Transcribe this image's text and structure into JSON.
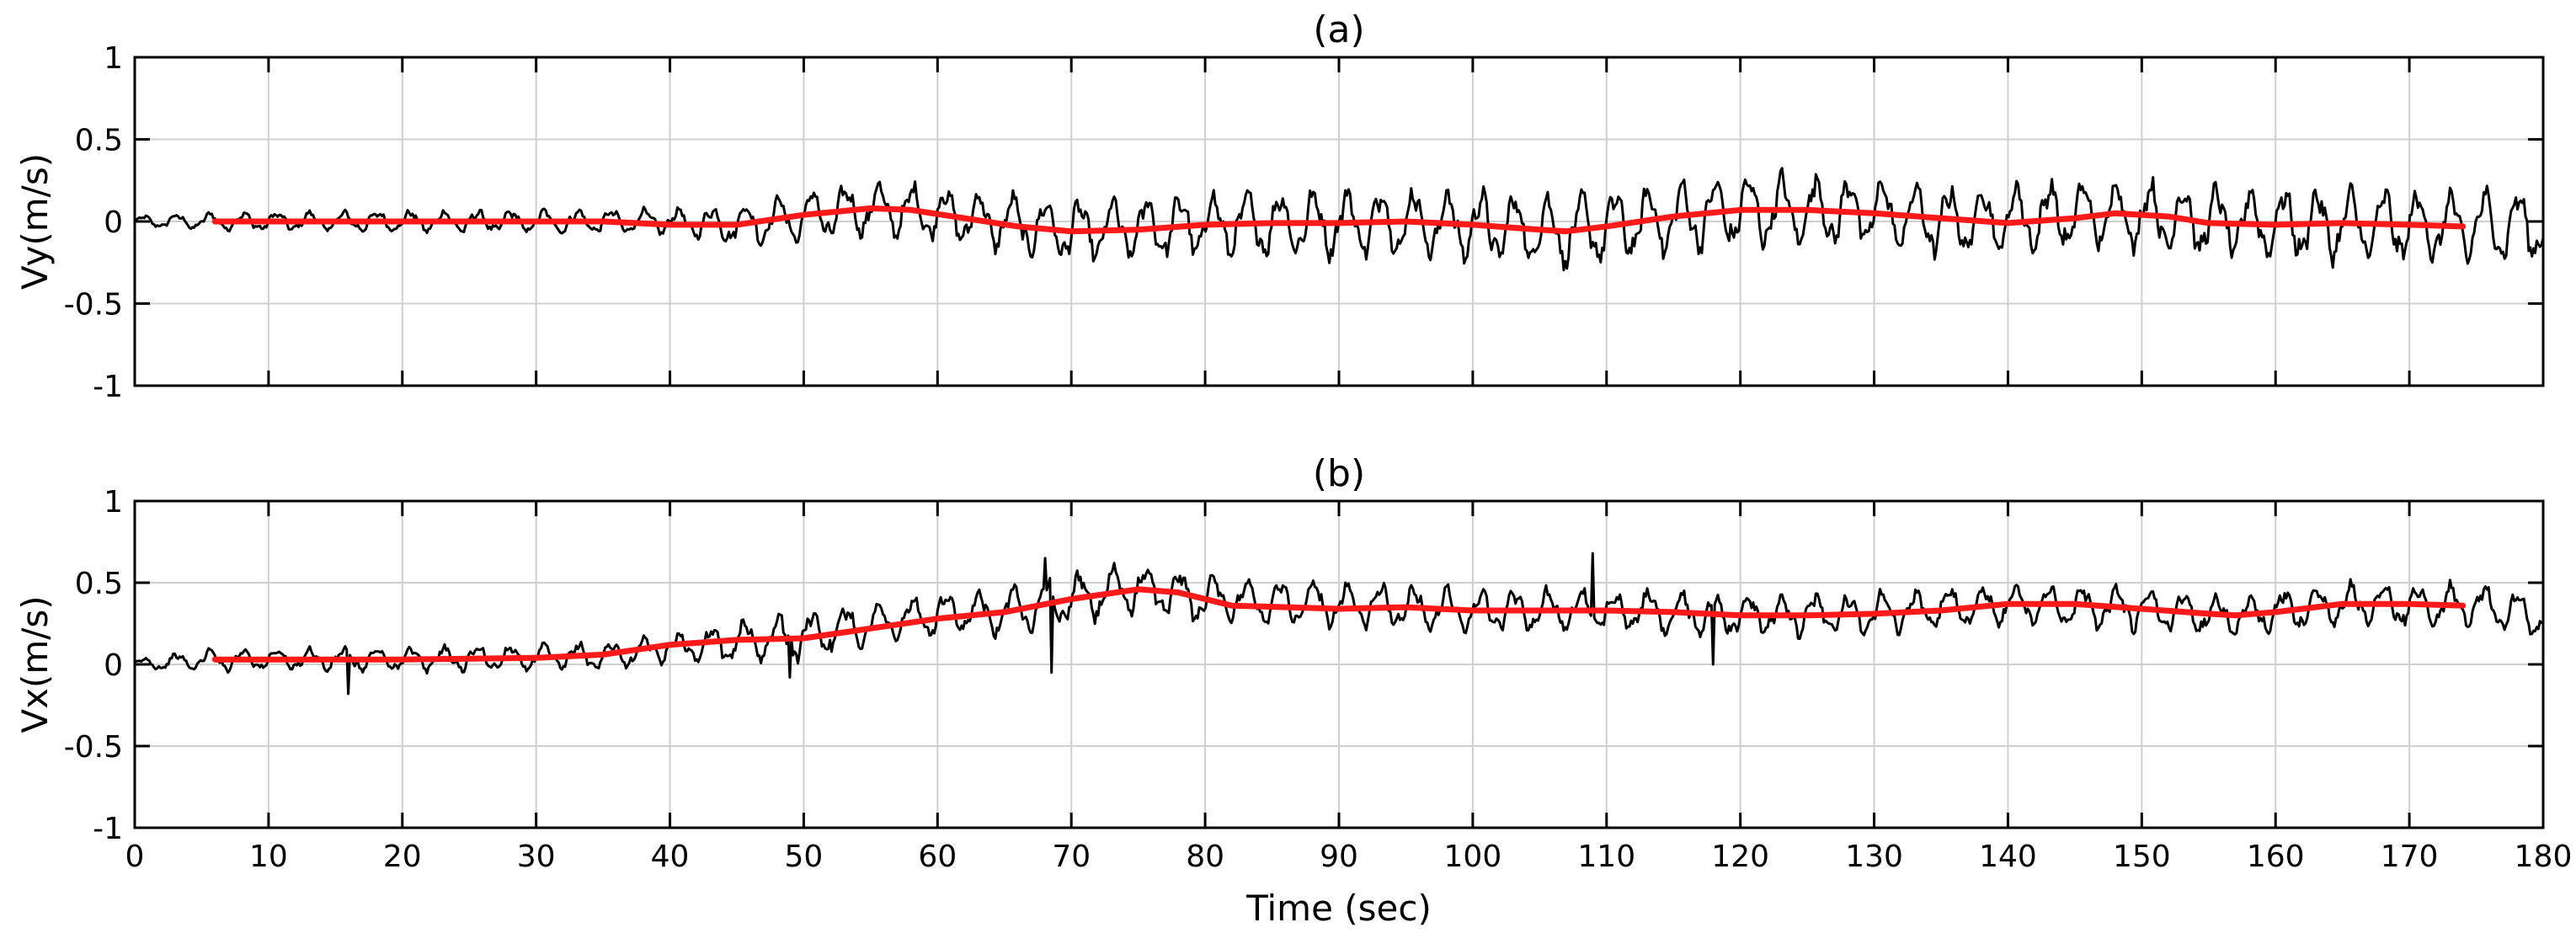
{
  "chart_data": [
    {
      "type": "line",
      "title": "(a)",
      "xlabel": "",
      "ylabel": "Vy(m/s)",
      "xlim": [
        0,
        180
      ],
      "ylim": [
        -1,
        1
      ],
      "x_ticks": [
        0,
        10,
        20,
        30,
        40,
        50,
        60,
        70,
        80,
        90,
        100,
        110,
        120,
        130,
        140,
        150,
        160,
        170,
        180
      ],
      "y_ticks": [
        -1,
        -0.5,
        0,
        0.5,
        1
      ],
      "x_tick_labels_visible": false,
      "grid": true,
      "series": [
        {
          "color": "#000000",
          "style": "raw-oscillating",
          "oscillation_period_s": 2.5,
          "envelope": [
            [
              0,
              0.03
            ],
            [
              6,
              0.05
            ],
            [
              40,
              0.07
            ],
            [
              50,
              0.15
            ],
            [
              60,
              0.15
            ],
            [
              70,
              0.17
            ],
            [
              100,
              0.2
            ],
            [
              180,
              0.2
            ]
          ],
          "x": [
            0,
            6,
            20,
            40,
            45,
            55,
            60,
            70,
            80,
            95,
            107,
            120,
            130,
            135,
            148,
            155,
            165,
            174,
            180
          ],
          "values": [
            0,
            0,
            0,
            0,
            -0.02,
            0.08,
            0.05,
            -0.06,
            -0.02,
            0.0,
            -0.06,
            0.07,
            0.06,
            0.0,
            0.05,
            0.0,
            -0.02,
            -0.03,
            -0.02
          ]
        },
        {
          "color": "#ff1a1a",
          "style": "smoothed",
          "x": [
            6,
            20,
            35,
            40,
            45,
            50,
            55,
            58,
            62,
            66,
            70,
            75,
            80,
            85,
            90,
            95,
            100,
            105,
            107,
            110,
            115,
            120,
            125,
            130,
            135,
            140,
            145,
            148,
            152,
            155,
            160,
            165,
            170,
            174
          ],
          "values": [
            0,
            0,
            0,
            -0.02,
            -0.02,
            0.04,
            0.08,
            0.07,
            0.02,
            -0.03,
            -0.06,
            -0.05,
            -0.02,
            -0.01,
            -0.01,
            0.0,
            -0.02,
            -0.05,
            -0.06,
            -0.03,
            0.03,
            0.07,
            0.07,
            0.05,
            0.02,
            -0.01,
            0.02,
            0.05,
            0.03,
            -0.01,
            -0.02,
            -0.01,
            -0.02,
            -0.03
          ]
        }
      ]
    },
    {
      "type": "line",
      "title": "(b)",
      "xlabel": "Time (sec)",
      "ylabel": "Vx(m/s)",
      "xlim": [
        0,
        180
      ],
      "ylim": [
        -1,
        1
      ],
      "x_ticks": [
        0,
        10,
        20,
        30,
        40,
        50,
        60,
        70,
        80,
        90,
        100,
        110,
        120,
        130,
        140,
        150,
        160,
        170,
        180
      ],
      "y_ticks": [
        -1,
        -0.5,
        0,
        0.5,
        1
      ],
      "x_tick_labels_visible": true,
      "grid": true,
      "series": [
        {
          "color": "#000000",
          "style": "raw-oscillating",
          "oscillation_period_s": 2.5,
          "envelope": [
            [
              0,
              0.03
            ],
            [
              6,
              0.06
            ],
            [
              40,
              0.08
            ],
            [
              48,
              0.14
            ],
            [
              60,
              0.12
            ],
            [
              70,
              0.14
            ],
            [
              100,
              0.12
            ],
            [
              180,
              0.12
            ]
          ],
          "spikes": [
            [
              16,
              -0.18
            ],
            [
              49,
              -0.08
            ],
            [
              68,
              0.65
            ],
            [
              68.5,
              -0.05
            ],
            [
              109,
              0.68
            ],
            [
              118,
              0.0
            ]
          ],
          "x": [
            0,
            6,
            20,
            35,
            40,
            45,
            50,
            55,
            60,
            65,
            70,
            75,
            80,
            90,
            100,
            110,
            120,
            130,
            140,
            150,
            157,
            165,
            175,
            180
          ],
          "values": [
            0,
            0.03,
            0.03,
            0.05,
            0.1,
            0.14,
            0.18,
            0.25,
            0.3,
            0.33,
            0.4,
            0.47,
            0.4,
            0.37,
            0.33,
            0.33,
            0.3,
            0.31,
            0.37,
            0.34,
            0.3,
            0.37,
            0.36,
            0.3
          ]
        },
        {
          "color": "#ff1a1a",
          "style": "smoothed",
          "x": [
            6,
            20,
            30,
            35,
            40,
            45,
            50,
            55,
            60,
            65,
            70,
            75,
            78,
            82,
            90,
            95,
            100,
            110,
            115,
            120,
            125,
            130,
            135,
            140,
            145,
            150,
            155,
            157,
            160,
            165,
            170,
            174
          ],
          "values": [
            0.03,
            0.03,
            0.04,
            0.06,
            0.12,
            0.15,
            0.16,
            0.22,
            0.28,
            0.32,
            0.4,
            0.46,
            0.44,
            0.36,
            0.34,
            0.35,
            0.33,
            0.33,
            0.32,
            0.3,
            0.3,
            0.31,
            0.33,
            0.37,
            0.37,
            0.34,
            0.31,
            0.3,
            0.32,
            0.37,
            0.37,
            0.36
          ]
        }
      ]
    }
  ]
}
